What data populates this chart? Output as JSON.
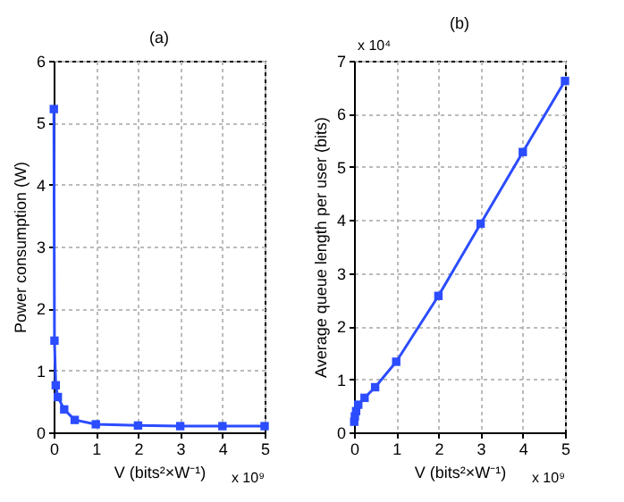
{
  "chart_data": [
    {
      "type": "line",
      "title": "(a)",
      "xlabel": "V (bits²×W⁻¹)",
      "ylabel": "Power consumption  (W)",
      "x": [
        0.005,
        0.02,
        0.05,
        0.1,
        0.25,
        0.5,
        1,
        2,
        3,
        4,
        5
      ],
      "series": [
        {
          "color": "#2b4cff",
          "values": [
            5.22,
            1.48,
            0.76,
            0.57,
            0.37,
            0.2,
            0.13,
            0.11,
            0.1,
            0.1,
            0.1
          ]
        }
      ],
      "xlim": [
        0,
        5
      ],
      "xticks": [
        0,
        1,
        2,
        3,
        4,
        5
      ],
      "ylim": [
        0,
        6
      ],
      "yticks": [
        0,
        1,
        2,
        3,
        4,
        5,
        6
      ],
      "grid": true,
      "marker": "square",
      "line_style": "solid",
      "annotations": [
        "x 10⁹"
      ]
    },
    {
      "type": "line",
      "title": "(b)",
      "xlabel": "V (bits²×W⁻¹)",
      "ylabel": "Average queue length per user (bits)",
      "x": [
        0.005,
        0.02,
        0.05,
        0.1,
        0.25,
        0.5,
        1,
        2,
        3,
        4,
        5
      ],
      "series": [
        {
          "color": "#2b4cff",
          "values": [
            0.2,
            0.3,
            0.4,
            0.52,
            0.65,
            0.85,
            1.33,
            2.57,
            3.93,
            5.28,
            6.62
          ]
        }
      ],
      "xlim": [
        0,
        5
      ],
      "xticks": [
        0,
        1,
        2,
        3,
        4,
        5
      ],
      "ylim": [
        0,
        7
      ],
      "yticks": [
        0,
        1,
        2,
        3,
        4,
        5,
        6,
        7
      ],
      "grid": true,
      "marker": "square",
      "line_style": "solid",
      "annotations": [
        "x 10⁹",
        "x 10⁴"
      ]
    }
  ]
}
